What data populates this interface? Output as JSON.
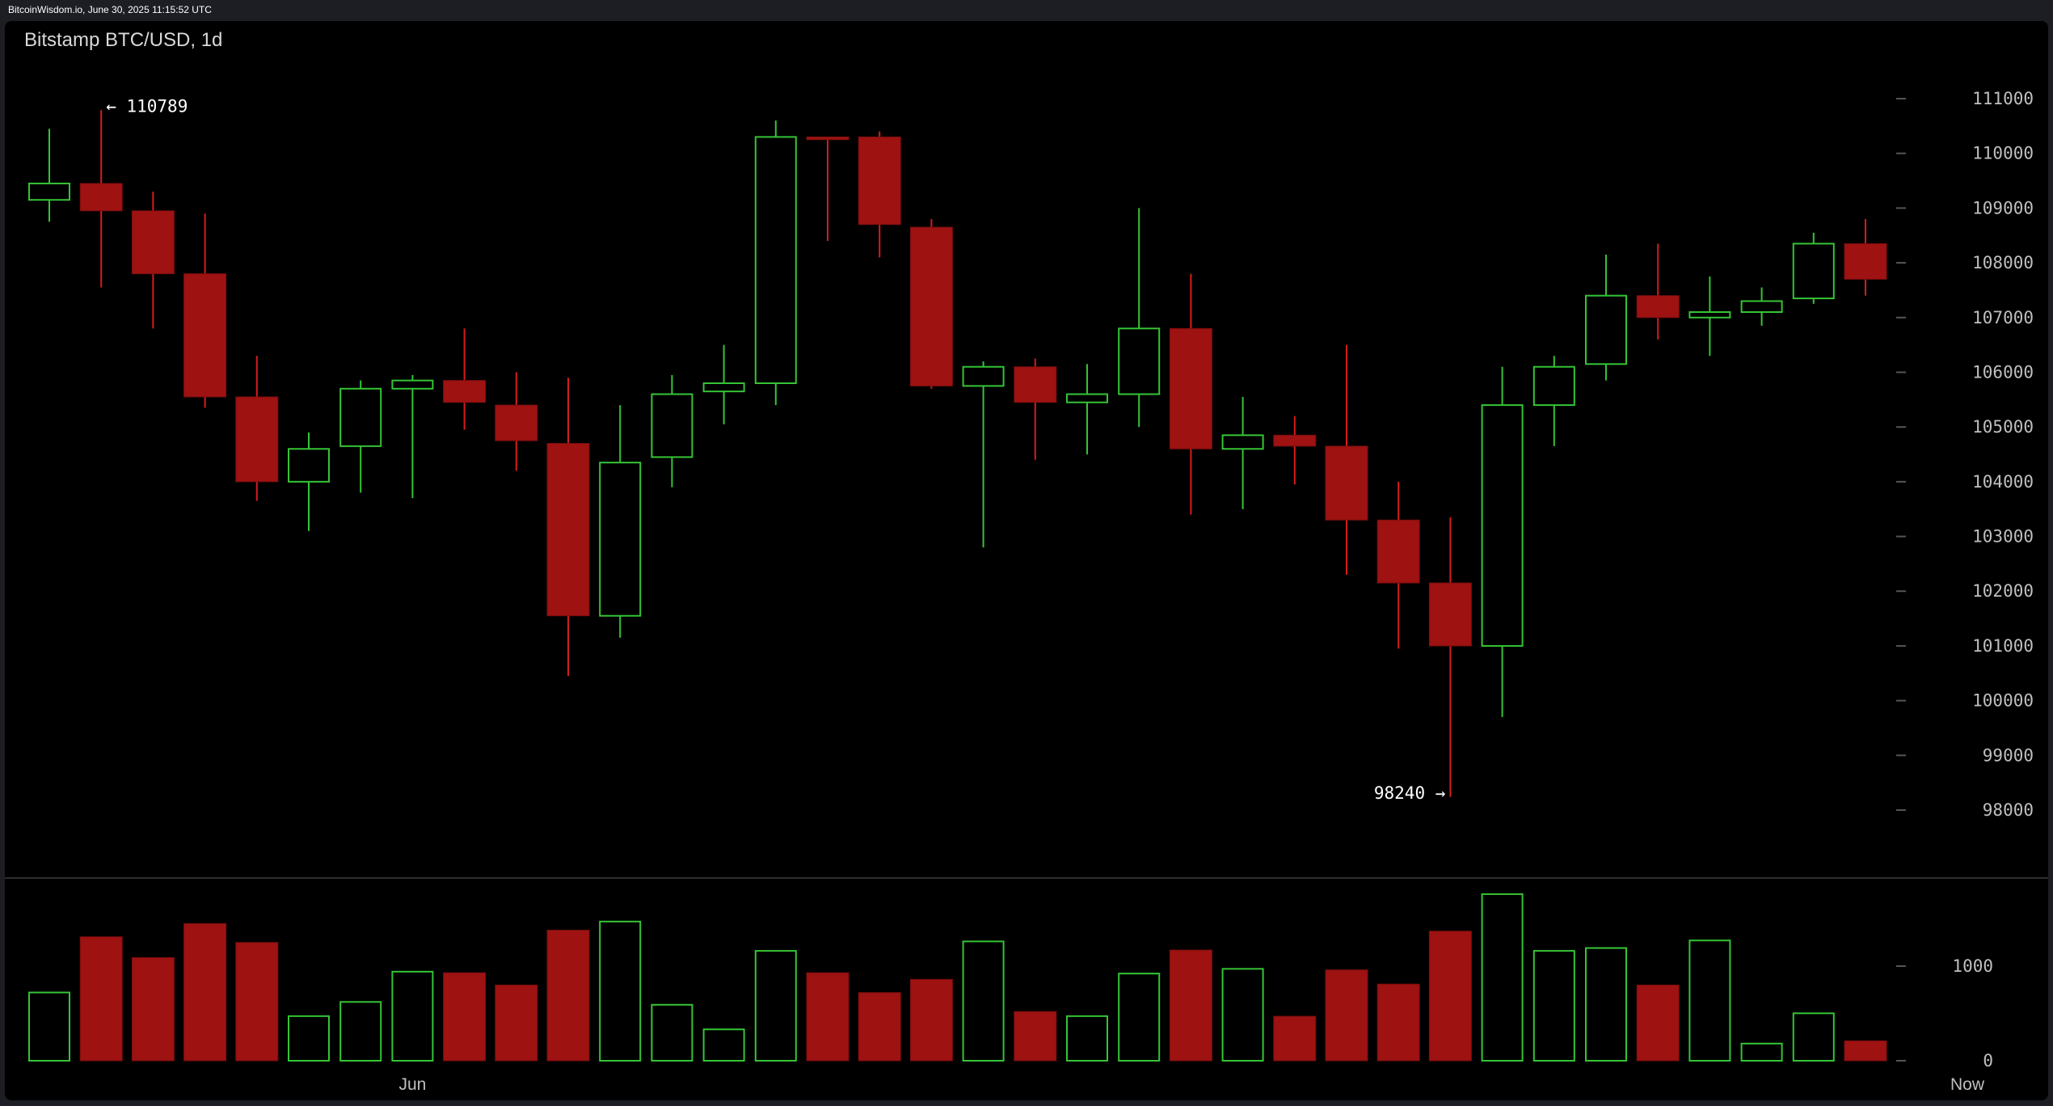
{
  "header": {
    "stamp": "BitcoinWisdom.io, June 30, 2025 11:15:52 UTC",
    "title": "Bitstamp BTC/USD, 1d"
  },
  "colors": {
    "up": "#35c435",
    "down": "#9e1212",
    "down_wick": "#d61c1c",
    "background": "#000000",
    "frame": "#1c1e24"
  },
  "chart_data": {
    "type": "candlestick",
    "y_ticks": [
      "111000",
      "110000",
      "109000",
      "108000",
      "107000",
      "106000",
      "105000",
      "104000",
      "103000",
      "102000",
      "101000",
      "100000",
      "99000",
      "98000"
    ],
    "ylim": [
      96800,
      112000
    ],
    "volume_ticks": [
      "1000",
      "0"
    ],
    "volume_ylim": [
      0,
      1800
    ],
    "x_labels": [
      {
        "label": "Jun",
        "index": 7
      },
      {
        "label": "Now",
        "index": 37
      }
    ],
    "annotations": [
      {
        "text": "← 110789",
        "index": 1,
        "value": 110789,
        "side": "right"
      },
      {
        "text": "98240 →",
        "index": 27,
        "value": 98240,
        "side": "left"
      }
    ],
    "candles": [
      {
        "o": 109150,
        "h": 110450,
        "l": 108750,
        "c": 109450,
        "v": 730
      },
      {
        "o": 109450,
        "h": 110789,
        "l": 107550,
        "c": 108950,
        "v": 1310
      },
      {
        "o": 108950,
        "h": 109300,
        "l": 106800,
        "c": 107800,
        "v": 1090
      },
      {
        "o": 107800,
        "h": 108900,
        "l": 105350,
        "c": 105550,
        "v": 1450
      },
      {
        "o": 105550,
        "h": 106300,
        "l": 103650,
        "c": 104000,
        "v": 1250
      },
      {
        "o": 104000,
        "h": 104900,
        "l": 103100,
        "c": 104600,
        "v": 480
      },
      {
        "o": 104650,
        "h": 105850,
        "l": 103800,
        "c": 105700,
        "v": 630
      },
      {
        "o": 105700,
        "h": 105950,
        "l": 103700,
        "c": 105850,
        "v": 950
      },
      {
        "o": 105850,
        "h": 106800,
        "l": 104950,
        "c": 105450,
        "v": 930
      },
      {
        "o": 105400,
        "h": 106000,
        "l": 104200,
        "c": 104750,
        "v": 800
      },
      {
        "o": 104700,
        "h": 105900,
        "l": 100450,
        "c": 101550,
        "v": 1380
      },
      {
        "o": 101550,
        "h": 105400,
        "l": 101150,
        "c": 104350,
        "v": 1480
      },
      {
        "o": 104450,
        "h": 105950,
        "l": 103900,
        "c": 105600,
        "v": 600
      },
      {
        "o": 105650,
        "h": 106500,
        "l": 105050,
        "c": 105800,
        "v": 340
      },
      {
        "o": 105800,
        "h": 110600,
        "l": 105400,
        "c": 110300,
        "v": 1170
      },
      {
        "o": 110300,
        "h": 110300,
        "l": 108400,
        "c": 110250,
        "v": 930
      },
      {
        "o": 110300,
        "h": 110400,
        "l": 108100,
        "c": 108700,
        "v": 720
      },
      {
        "o": 108650,
        "h": 108800,
        "l": 105700,
        "c": 105750,
        "v": 860
      },
      {
        "o": 105750,
        "h": 106200,
        "l": 102800,
        "c": 106100,
        "v": 1270
      },
      {
        "o": 106100,
        "h": 106250,
        "l": 104400,
        "c": 105450,
        "v": 520
      },
      {
        "o": 105450,
        "h": 106150,
        "l": 104500,
        "c": 105600,
        "v": 480
      },
      {
        "o": 105600,
        "h": 109000,
        "l": 105000,
        "c": 106800,
        "v": 930
      },
      {
        "o": 106800,
        "h": 107800,
        "l": 103400,
        "c": 104600,
        "v": 1170
      },
      {
        "o": 104600,
        "h": 105550,
        "l": 103500,
        "c": 104850,
        "v": 980
      },
      {
        "o": 104850,
        "h": 105200,
        "l": 103950,
        "c": 104650,
        "v": 470
      },
      {
        "o": 104650,
        "h": 106500,
        "l": 102300,
        "c": 103300,
        "v": 960
      },
      {
        "o": 103300,
        "h": 104000,
        "l": 100950,
        "c": 102150,
        "v": 810
      },
      {
        "o": 102150,
        "h": 103350,
        "l": 98240,
        "c": 101000,
        "v": 1370
      },
      {
        "o": 101000,
        "h": 106100,
        "l": 99700,
        "c": 105400,
        "v": 1770
      },
      {
        "o": 105400,
        "h": 106300,
        "l": 104650,
        "c": 106100,
        "v": 1170
      },
      {
        "o": 106150,
        "h": 108150,
        "l": 105850,
        "c": 107400,
        "v": 1200
      },
      {
        "o": 107400,
        "h": 108350,
        "l": 106600,
        "c": 107000,
        "v": 800
      },
      {
        "o": 107000,
        "h": 107750,
        "l": 106300,
        "c": 107100,
        "v": 1280
      },
      {
        "o": 107100,
        "h": 107550,
        "l": 106850,
        "c": 107300,
        "v": 190
      },
      {
        "o": 107350,
        "h": 108550,
        "l": 107250,
        "c": 108350,
        "v": 510
      },
      {
        "o": 108350,
        "h": 108800,
        "l": 107400,
        "c": 107700,
        "v": 210
      }
    ]
  }
}
